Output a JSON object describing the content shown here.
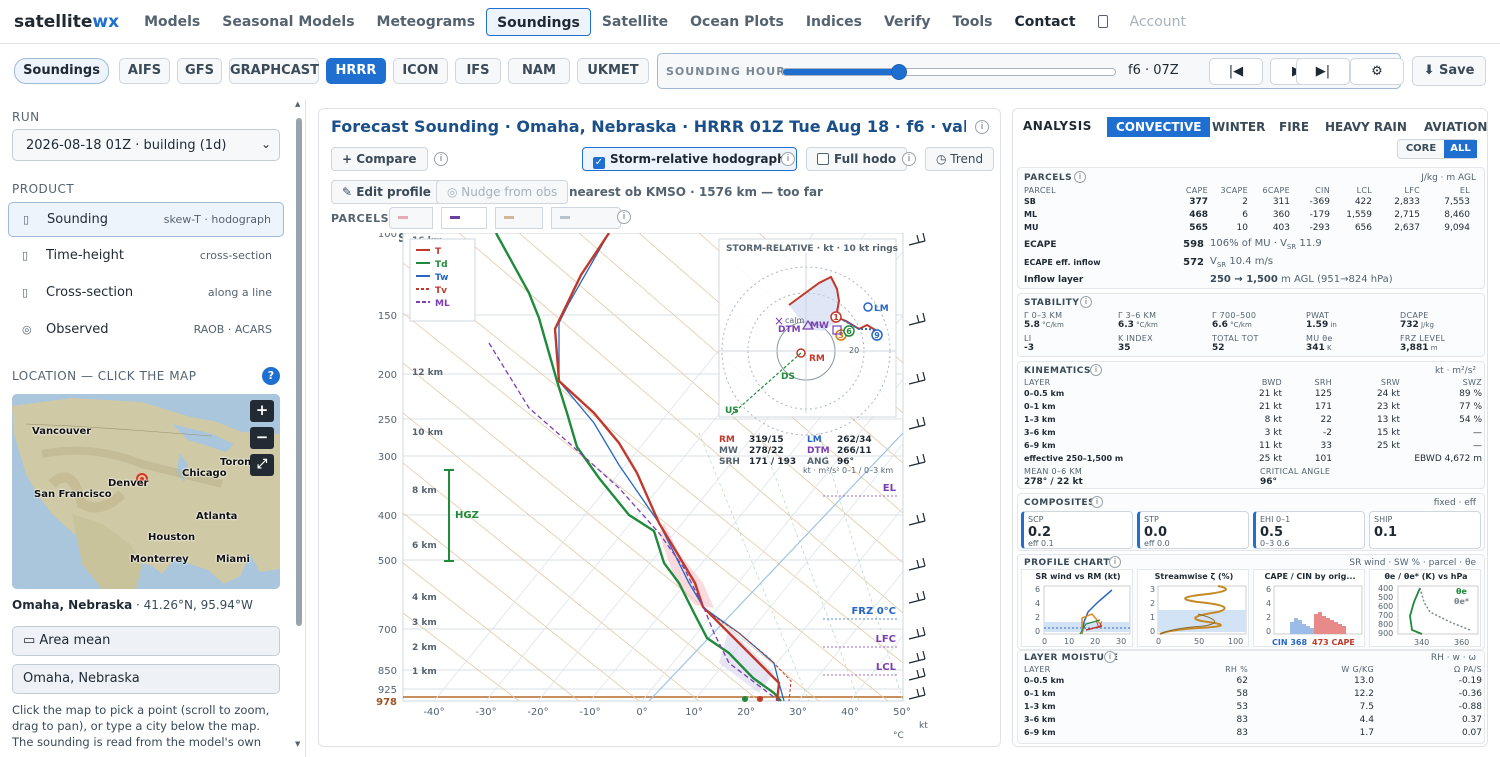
{
  "brand": {
    "prefix": "satellite",
    "suffix": "wx"
  },
  "nav": [
    {
      "label": "Models",
      "state": "normal"
    },
    {
      "label": "Seasonal Models",
      "state": "normal"
    },
    {
      "label": "Meteograms",
      "state": "normal"
    },
    {
      "label": "Soundings",
      "state": "active"
    },
    {
      "label": "Satellite",
      "state": "normal"
    },
    {
      "label": "Ocean Plots",
      "state": "normal"
    },
    {
      "label": "Indices",
      "state": "normal"
    },
    {
      "label": "Verify",
      "state": "normal"
    },
    {
      "label": "Tools",
      "state": "normal"
    },
    {
      "label": "Contact",
      "state": "strong"
    },
    {
      "label": "",
      "state": "strong",
      "icon": "moon-icon"
    },
    {
      "label": "Account",
      "state": "dim"
    }
  ],
  "models": {
    "section_chip": "Soundings",
    "items": [
      "AIFS",
      "GFS",
      "GRAPHCAST",
      "HRRR",
      "ICON",
      "IFS",
      "NAM",
      "UKMET"
    ],
    "selected": "HRRR"
  },
  "hour": {
    "label": "SOUNDING HOUR",
    "value_text": "f6 · 07Z",
    "progress": 0.35,
    "first_icon": "skip-first-icon",
    "play_icon": "play-icon",
    "last_icon": "skip-last-icon",
    "settings_icon": "gear-icon"
  },
  "save_label": "⬇ Save",
  "left": {
    "run_label": "RUN",
    "run_value": "2026-08-18 01Z · building (1d)",
    "product_label": "PRODUCT",
    "products": [
      {
        "name": "Sounding",
        "note": "skew-T · hodograph",
        "icon": "sounding-icon",
        "glyph": "▯"
      },
      {
        "name": "Time-height",
        "note": "cross-section",
        "icon": "time-height-icon",
        "glyph": "▯"
      },
      {
        "name": "Cross-section",
        "note": "along a line",
        "icon": "cross-section-icon",
        "glyph": "▯"
      },
      {
        "name": "Observed",
        "note": "RAOB · ACARS",
        "icon": "observed-icon",
        "glyph": "◎"
      }
    ],
    "location_label": "LOCATION — CLICK THE MAP",
    "help": "?",
    "map_labels": [
      "Vancouver",
      "Denver",
      "San Francisco",
      "Chicago",
      "Toronto",
      "Atlanta",
      "Houston",
      "Monterrey",
      "Miami"
    ],
    "zoom_in": "+",
    "zoom_out": "−",
    "fullscreen": "⤢",
    "place": "Omaha, Nebraska",
    "coords": " · 41.26°N, 95.94°W",
    "area_mean": "▭ Area mean",
    "city_value": "Omaha, Nebraska",
    "hint": "Click the map to pick a point (scroll to zoom, drag to pan), or type a city below the map. The sounding is read from the model's own"
  },
  "center": {
    "title": "Forecast Sounding · Omaha, Nebraska · HRRR 01Z Tue Aug 18 · f6 · valid ...",
    "compare": "+ Compare",
    "storm_hodo": "Storm-relative hodograph",
    "full_hodo": "Full hodo",
    "trend": "◷ Trend",
    "edit_profile": "✎ Edit profile",
    "nudge": "◎ Nudge from obs",
    "nearest": "nearest ob KMSO · 1576 km — too far",
    "parcels_label": "PARCELS",
    "parcel_buttons": [
      {
        "label": "SB",
        "color": "#e8a9b8"
      },
      {
        "label": "ML",
        "color": "#6b3fa0"
      },
      {
        "label": "MU",
        "color": "#d3b79a"
      },
      {
        "label": "DCAPE",
        "color": "#b9c3cc"
      }
    ],
    "info_glyph": "i"
  },
  "skewt": {
    "pressure_levels": [
      100,
      150,
      200,
      250,
      300,
      400,
      500,
      700,
      850,
      925,
      978
    ],
    "temp_ticks": [
      "-40°",
      "-30°",
      "-20°",
      "-10°",
      "0°",
      "10°",
      "20°",
      "30°",
      "40°",
      "50°"
    ],
    "height_labels": [
      "16 km",
      "14 km",
      "12 km",
      "10 km",
      "8 km",
      "6 km",
      "4 km",
      "3 km",
      "2 km",
      "1 km"
    ],
    "unit_c": "°C",
    "unit_kt": "kt",
    "legend": [
      "T",
      "Td",
      "Tw",
      "Tv",
      "ML"
    ],
    "hgz": "HGZ",
    "markers": [
      "EL",
      "FRZ 0°C",
      "LFC",
      "LCL"
    ],
    "hodo_title": "STORM-RELATIVE · kt · 10 kt rings",
    "hodo_labels": [
      "LM",
      "calm",
      "DTM",
      "MW",
      "RM",
      "DS",
      "US",
      "20"
    ],
    "hodo_points": [
      "1",
      "3",
      "6",
      "9"
    ],
    "stats": [
      {
        "k": "RM",
        "v": "319/15"
      },
      {
        "k": "LM",
        "v": "262/34"
      },
      {
        "k": "MW",
        "v": "278/22"
      },
      {
        "k": "DTM",
        "v": "266/11"
      },
      {
        "k": "SRH",
        "v": "171 / 193"
      },
      {
        "k": "ANG",
        "v": "96°"
      }
    ],
    "stats_note": "kt · m²/s² 0–1 / 0–3 km"
  },
  "right": {
    "analysis": "ANALYSIS",
    "tabs": [
      "CONVECTIVE",
      "WINTER",
      "FIRE",
      "HEAVY RAIN",
      "AVIATION"
    ],
    "selected_tab": "CONVECTIVE",
    "toggle": [
      "CORE",
      "ALL"
    ],
    "toggle_sel": "ALL",
    "parcels": {
      "title": "PARCELS",
      "unit": "J/kg · m AGL",
      "headers": [
        "PARCEL",
        "CAPE",
        "3CAPE",
        "6CAPE",
        "CIN",
        "LCL",
        "LFC",
        "EL"
      ],
      "rows": [
        [
          "SB",
          "377",
          "2",
          "311",
          "-369",
          "422",
          "2,833",
          "7,553"
        ],
        [
          "ML",
          "468",
          "6",
          "360",
          "-179",
          "1,559",
          "2,715",
          "8,460"
        ],
        [
          "MU",
          "565",
          "10",
          "403",
          "-293",
          "656",
          "2,637",
          "9,094"
        ]
      ],
      "ecape_label": "ECAPE",
      "ecape_val": "598",
      "ecape_note": "106% of MU · V",
      "ecape_note_sub": "SR",
      "ecape_note_tail": " 11.9",
      "eff_label": "ECAPE eff. inflow",
      "eff_val": "572",
      "eff_note": "V",
      "eff_note_sub": "SR",
      "eff_note_tail": " 10.4 m/s",
      "inflow_label": "Inflow layer",
      "inflow_val": "250 → 1,500",
      "inflow_tail": " m AGL (951→824 hPa)"
    },
    "stability": {
      "title": "STABILITY",
      "items": [
        {
          "k": "Γ 0–3 KM",
          "v": "5.8",
          "u": " °C/km"
        },
        {
          "k": "Γ 3–6 KM",
          "v": "6.3",
          "u": " °C/km"
        },
        {
          "k": "Γ 700–500",
          "v": "6.6",
          "u": " °C/km"
        },
        {
          "k": "PWAT",
          "v": "1.59",
          "u": " in"
        },
        {
          "k": "DCAPE",
          "v": "732",
          "u": " J/kg"
        },
        {
          "k": "LI",
          "v": "-3",
          "u": ""
        },
        {
          "k": "K INDEX",
          "v": "35",
          "u": ""
        },
        {
          "k": "TOTAL TOT",
          "v": "52",
          "u": ""
        },
        {
          "k": "MU θe",
          "v": "341",
          "u": " K"
        },
        {
          "k": "FRZ LEVEL",
          "v": "3,881",
          "u": " m"
        }
      ]
    },
    "kinematics": {
      "title": "KINEMATICS",
      "unit": "kt · m²/s²",
      "headers": [
        "LAYER",
        "BWD",
        "SRH",
        "SRW",
        "SWZ"
      ],
      "rows": [
        [
          "0–0.5 km",
          "21 kt",
          "125",
          "24 kt",
          "89 %"
        ],
        [
          "0–1 km",
          "21 kt",
          "171",
          "23 kt",
          "77 %"
        ],
        [
          "1–3 km",
          "8 kt",
          "22",
          "13 kt",
          "54 %"
        ],
        [
          "3–6 km",
          "3 kt",
          "-2",
          "15 kt",
          "—"
        ],
        [
          "6–9 km",
          "11 kt",
          "33",
          "25 kt",
          "—"
        ],
        [
          "effective 250–1,500 m",
          "25 kt",
          "101",
          "",
          "EBWD 4,672 m"
        ]
      ],
      "mean_label": "MEAN 0–6 KM",
      "mean_val": "278° / 22 kt",
      "crit_label": "CRITICAL ANGLE",
      "crit_val": "96°"
    },
    "composites": {
      "title": "COMPOSITES",
      "unit": "fixed · eff",
      "items": [
        {
          "k": "SCP",
          "v": "0.2",
          "e": "eff 0.1"
        },
        {
          "k": "STP",
          "v": "0.0",
          "e": "eff 0.0"
        },
        {
          "k": "EHI 0–1",
          "v": "0.5",
          "e": "0–3 0.6"
        },
        {
          "k": "SHIP",
          "v": "0.1",
          "e": ""
        }
      ]
    },
    "profile": {
      "title": "PROFILE CHARTS",
      "unit": "SR wind · SW % · parcel · θe",
      "charts": [
        {
          "title": "SR wind vs RM (kt)",
          "yt": [
            "6",
            "4",
            "2",
            "0"
          ],
          "xt": [
            "0",
            "10",
            "20",
            "30"
          ],
          "note": "V"
        },
        {
          "title": "Streamwise ζ (%)",
          "yt": [
            "3",
            "2",
            "1",
            "0"
          ],
          "xt": [
            "0",
            "50",
            "100"
          ]
        },
        {
          "title": "CAPE / CIN by orig...",
          "yt": [
            "6",
            "4",
            "2",
            "0"
          ],
          "cin": "CIN 368",
          "cape": "473 CAPE"
        },
        {
          "title": "θe / θe* (K) vs hPa",
          "yt": [
            "400",
            "500",
            "600",
            "700",
            "800",
            "900"
          ],
          "xt": [
            "340",
            "360"
          ],
          "l1": "θe",
          "l2": "θe*"
        }
      ]
    },
    "moisture": {
      "title": "LAYER MOISTURE",
      "unit": "RH · w · ω",
      "headers": [
        "LAYER",
        "RH %",
        "W G/KG",
        "Ω PA/S"
      ],
      "rows": [
        [
          "0–0.5 km",
          "62",
          "13.0",
          "-0.19"
        ],
        [
          "0–1 km",
          "58",
          "12.2",
          "-0.36"
        ],
        [
          "1–3 km",
          "53",
          "7.5",
          "-0.88"
        ],
        [
          "3–6 km",
          "83",
          "4.4",
          "0.37"
        ],
        [
          "6–9 km",
          "83",
          "1.7",
          "0.07"
        ]
      ]
    }
  }
}
